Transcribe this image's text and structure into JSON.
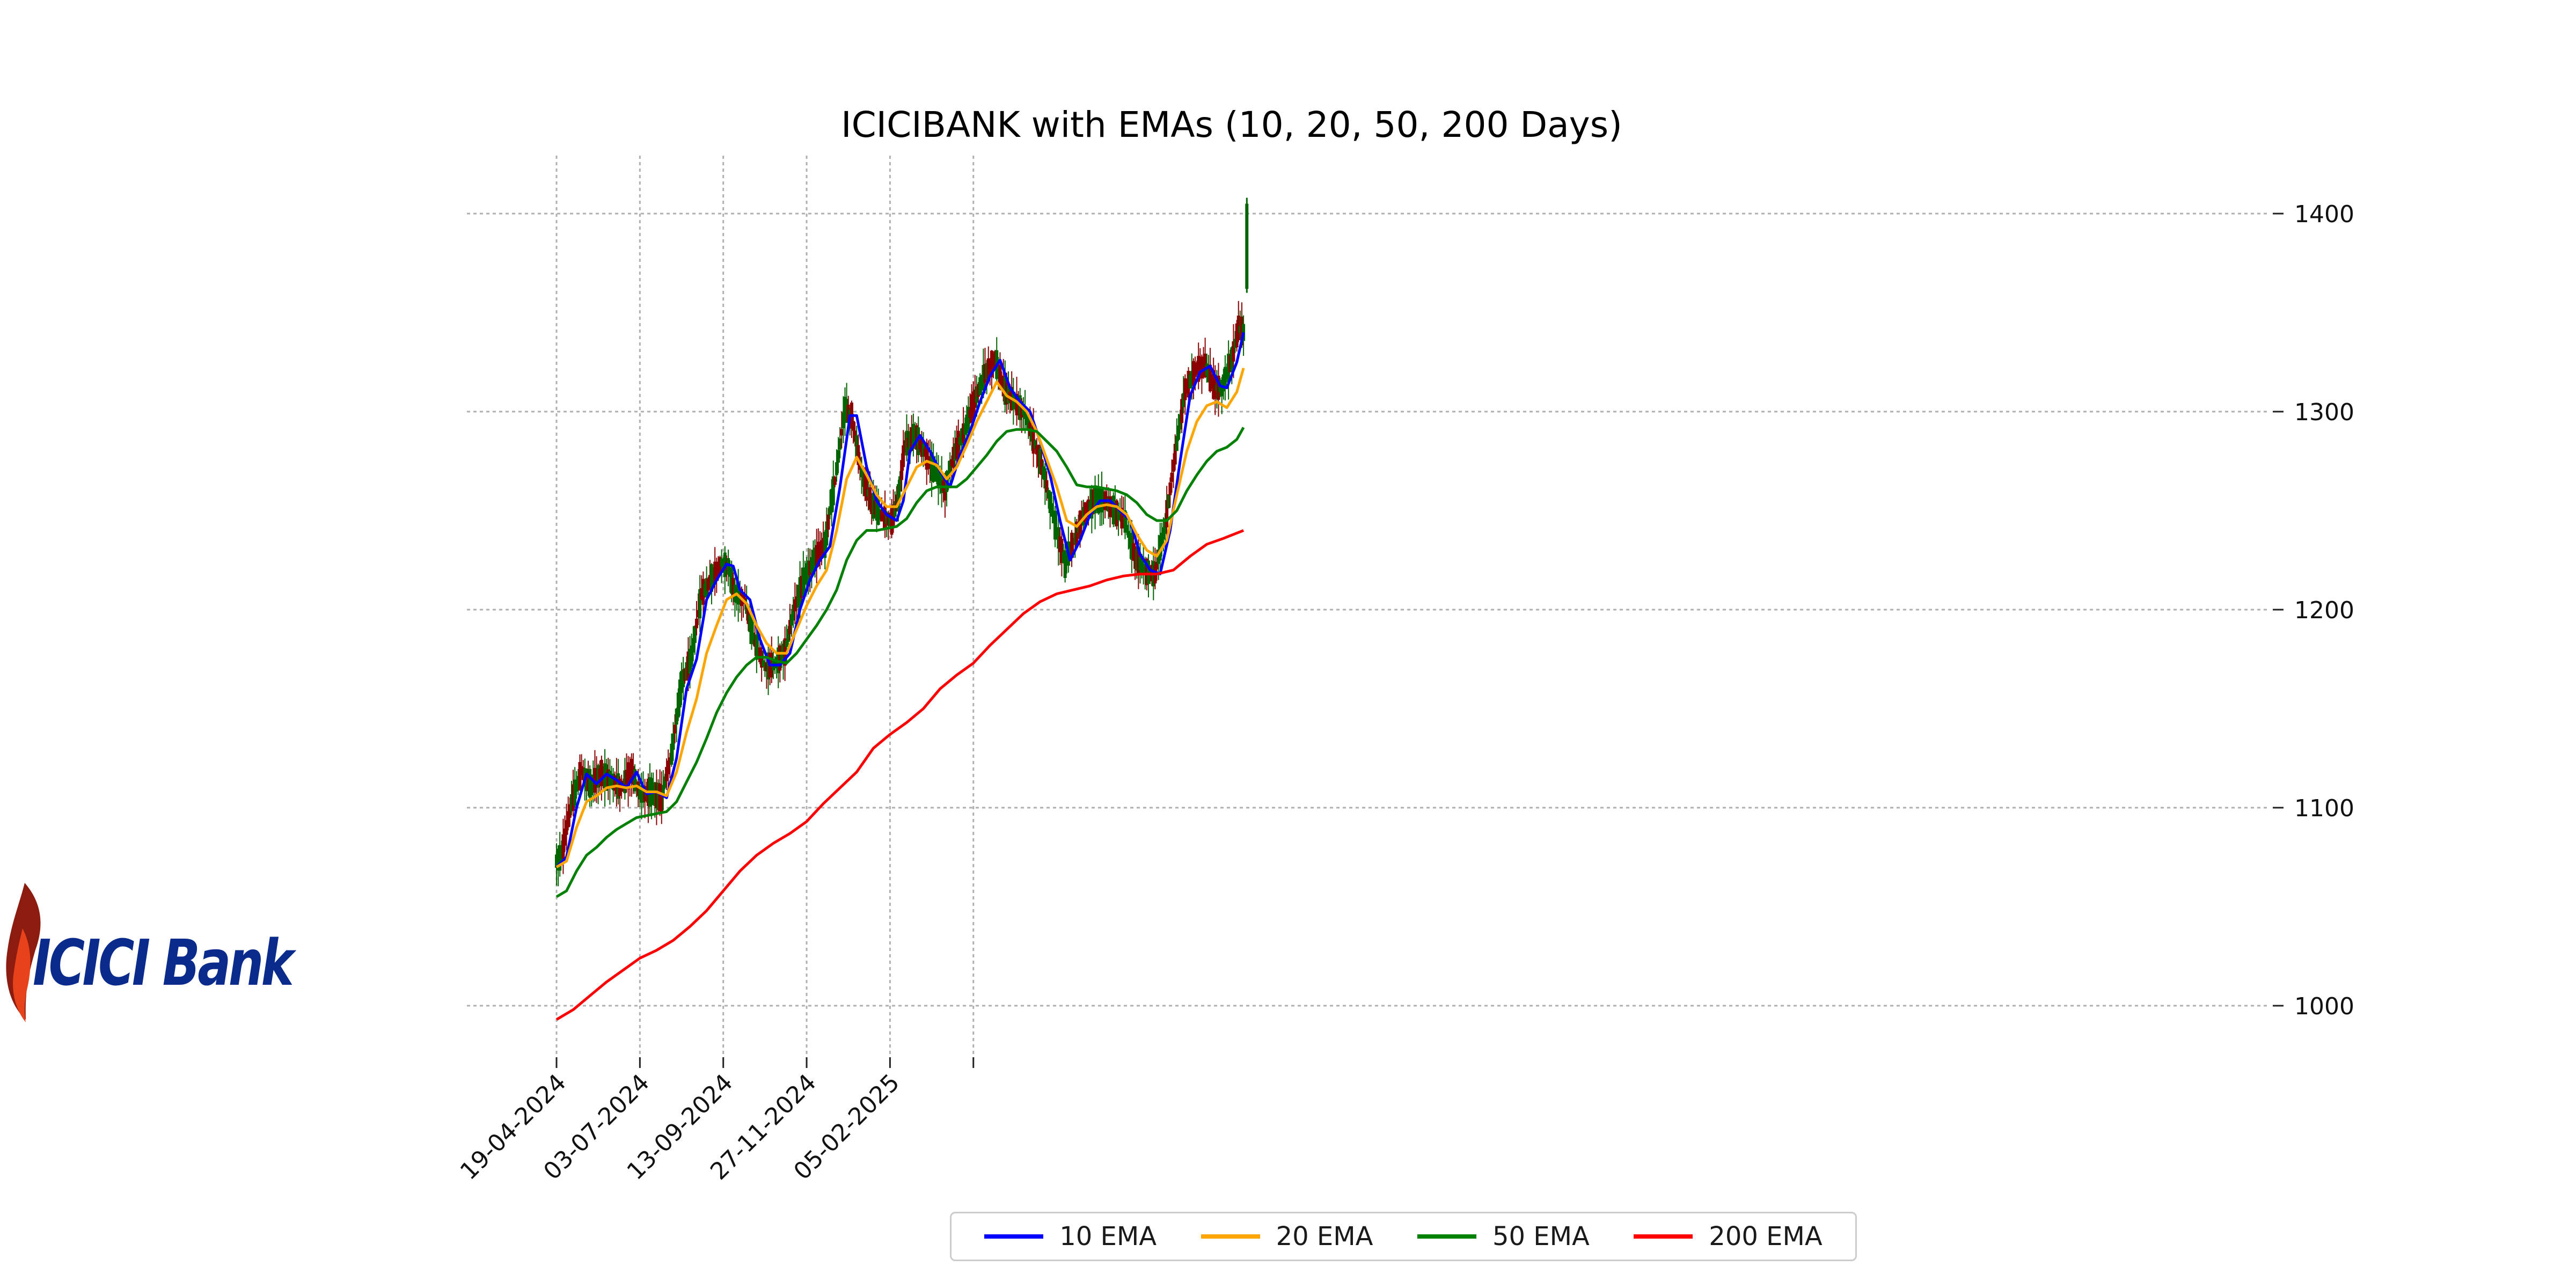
{
  "logo": {
    "text": "ICICI Bank",
    "colors": {
      "text": "#0a2a8c",
      "flame": "#e8421b",
      "dark": "#8c1b10"
    }
  },
  "chart_data": {
    "type": "candlestick",
    "title": "ICICIBANK with EMAs (10, 20, 50, 200 Days)",
    "xlabel": "",
    "ylabel": "",
    "ylim": [
      975,
      1418
    ],
    "y_ticks": [
      1000,
      1100,
      1200,
      1300,
      1400
    ],
    "x_ticks": [
      "19-04-2024",
      "03-07-2024",
      "13-09-2024",
      "27-11-2024",
      "05-02-2025"
    ],
    "grid": true,
    "y_axis_side": "right",
    "legend_position": "bottom-center",
    "candle_colors": {
      "up": "#006400",
      "down": "#8b0000"
    },
    "series": [
      {
        "name": "10 EMA",
        "color": "#0000ff",
        "points": [
          [
            0,
            1070
          ],
          [
            6,
            1075
          ],
          [
            12,
            1100
          ],
          [
            18,
            1117
          ],
          [
            24,
            1112
          ],
          [
            30,
            1117
          ],
          [
            36,
            1114
          ],
          [
            42,
            1110
          ],
          [
            48,
            1118
          ],
          [
            54,
            1107
          ],
          [
            60,
            1108
          ],
          [
            66,
            1105
          ],
          [
            72,
            1125
          ],
          [
            78,
            1160
          ],
          [
            84,
            1175
          ],
          [
            90,
            1205
          ],
          [
            96,
            1215
          ],
          [
            102,
            1223
          ],
          [
            106,
            1222
          ],
          [
            110,
            1210
          ],
          [
            116,
            1205
          ],
          [
            122,
            1185
          ],
          [
            128,
            1172
          ],
          [
            134,
            1172
          ],
          [
            140,
            1178
          ],
          [
            146,
            1200
          ],
          [
            152,
            1215
          ],
          [
            158,
            1225
          ],
          [
            164,
            1232
          ],
          [
            170,
            1262
          ],
          [
            176,
            1298
          ],
          [
            180,
            1298
          ],
          [
            186,
            1272
          ],
          [
            192,
            1255
          ],
          [
            198,
            1248
          ],
          [
            204,
            1245
          ],
          [
            208,
            1255
          ],
          [
            212,
            1280
          ],
          [
            218,
            1288
          ],
          [
            224,
            1280
          ],
          [
            230,
            1270
          ],
          [
            236,
            1262
          ],
          [
            242,
            1278
          ],
          [
            248,
            1290
          ],
          [
            254,
            1305
          ],
          [
            260,
            1318
          ],
          [
            266,
            1326
          ],
          [
            272,
            1312
          ],
          [
            278,
            1305
          ],
          [
            284,
            1300
          ],
          [
            290,
            1285
          ],
          [
            296,
            1268
          ],
          [
            302,
            1245
          ],
          [
            308,
            1225
          ],
          [
            314,
            1235
          ],
          [
            320,
            1248
          ],
          [
            326,
            1255
          ],
          [
            332,
            1255
          ],
          [
            338,
            1250
          ],
          [
            344,
            1245
          ],
          [
            350,
            1228
          ],
          [
            356,
            1220
          ],
          [
            362,
            1218
          ],
          [
            368,
            1240
          ],
          [
            374,
            1275
          ],
          [
            380,
            1308
          ],
          [
            386,
            1320
          ],
          [
            392,
            1323
          ],
          [
            398,
            1313
          ],
          [
            402,
            1312
          ],
          [
            408,
            1325
          ],
          [
            412,
            1340
          ]
        ]
      },
      {
        "name": "20 EMA",
        "color": "#ffa500",
        "points": [
          [
            0,
            1070
          ],
          [
            6,
            1073
          ],
          [
            12,
            1090
          ],
          [
            18,
            1103
          ],
          [
            24,
            1106
          ],
          [
            30,
            1110
          ],
          [
            36,
            1111
          ],
          [
            42,
            1110
          ],
          [
            48,
            1111
          ],
          [
            54,
            1108
          ],
          [
            60,
            1108
          ],
          [
            66,
            1106
          ],
          [
            72,
            1118
          ],
          [
            78,
            1138
          ],
          [
            84,
            1155
          ],
          [
            90,
            1178
          ],
          [
            96,
            1192
          ],
          [
            102,
            1205
          ],
          [
            108,
            1208
          ],
          [
            114,
            1203
          ],
          [
            120,
            1192
          ],
          [
            126,
            1183
          ],
          [
            132,
            1178
          ],
          [
            138,
            1178
          ],
          [
            144,
            1190
          ],
          [
            150,
            1202
          ],
          [
            156,
            1212
          ],
          [
            162,
            1220
          ],
          [
            168,
            1240
          ],
          [
            174,
            1266
          ],
          [
            180,
            1277
          ],
          [
            186,
            1268
          ],
          [
            192,
            1258
          ],
          [
            198,
            1252
          ],
          [
            204,
            1252
          ],
          [
            210,
            1262
          ],
          [
            216,
            1272
          ],
          [
            222,
            1275
          ],
          [
            228,
            1273
          ],
          [
            234,
            1266
          ],
          [
            240,
            1272
          ],
          [
            246,
            1283
          ],
          [
            252,
            1295
          ],
          [
            258,
            1305
          ],
          [
            264,
            1315
          ],
          [
            270,
            1308
          ],
          [
            276,
            1305
          ],
          [
            282,
            1300
          ],
          [
            288,
            1290
          ],
          [
            294,
            1276
          ],
          [
            300,
            1262
          ],
          [
            306,
            1245
          ],
          [
            312,
            1242
          ],
          [
            318,
            1248
          ],
          [
            324,
            1252
          ],
          [
            330,
            1253
          ],
          [
            336,
            1252
          ],
          [
            342,
            1248
          ],
          [
            348,
            1238
          ],
          [
            354,
            1230
          ],
          [
            360,
            1227
          ],
          [
            366,
            1235
          ],
          [
            372,
            1258
          ],
          [
            378,
            1280
          ],
          [
            384,
            1295
          ],
          [
            390,
            1303
          ],
          [
            396,
            1305
          ],
          [
            402,
            1302
          ],
          [
            408,
            1310
          ],
          [
            412,
            1322
          ]
        ]
      },
      {
        "name": "50 EMA",
        "color": "#008000",
        "points": [
          [
            0,
            1055
          ],
          [
            6,
            1058
          ],
          [
            12,
            1068
          ],
          [
            18,
            1076
          ],
          [
            24,
            1080
          ],
          [
            30,
            1085
          ],
          [
            36,
            1089
          ],
          [
            42,
            1092
          ],
          [
            48,
            1095
          ],
          [
            54,
            1096
          ],
          [
            60,
            1097
          ],
          [
            66,
            1098
          ],
          [
            72,
            1103
          ],
          [
            78,
            1113
          ],
          [
            84,
            1123
          ],
          [
            90,
            1135
          ],
          [
            96,
            1148
          ],
          [
            102,
            1158
          ],
          [
            108,
            1166
          ],
          [
            114,
            1172
          ],
          [
            120,
            1176
          ],
          [
            126,
            1176
          ],
          [
            132,
            1174
          ],
          [
            138,
            1173
          ],
          [
            144,
            1178
          ],
          [
            150,
            1185
          ],
          [
            156,
            1192
          ],
          [
            162,
            1200
          ],
          [
            168,
            1210
          ],
          [
            174,
            1225
          ],
          [
            180,
            1235
          ],
          [
            186,
            1240
          ],
          [
            192,
            1240
          ],
          [
            198,
            1241
          ],
          [
            204,
            1242
          ],
          [
            210,
            1246
          ],
          [
            216,
            1254
          ],
          [
            222,
            1260
          ],
          [
            228,
            1262
          ],
          [
            234,
            1262
          ],
          [
            240,
            1262
          ],
          [
            246,
            1266
          ],
          [
            252,
            1272
          ],
          [
            258,
            1278
          ],
          [
            264,
            1285
          ],
          [
            270,
            1290
          ],
          [
            276,
            1291
          ],
          [
            282,
            1291
          ],
          [
            288,
            1290
          ],
          [
            294,
            1285
          ],
          [
            300,
            1280
          ],
          [
            306,
            1272
          ],
          [
            312,
            1263
          ],
          [
            318,
            1262
          ],
          [
            324,
            1262
          ],
          [
            330,
            1261
          ],
          [
            336,
            1260
          ],
          [
            342,
            1258
          ],
          [
            348,
            1254
          ],
          [
            354,
            1248
          ],
          [
            360,
            1245
          ],
          [
            366,
            1245
          ],
          [
            372,
            1250
          ],
          [
            378,
            1260
          ],
          [
            384,
            1268
          ],
          [
            390,
            1275
          ],
          [
            396,
            1280
          ],
          [
            402,
            1282
          ],
          [
            408,
            1286
          ],
          [
            412,
            1292
          ]
        ]
      },
      {
        "name": "200 EMA",
        "color": "#ff0000",
        "points": [
          [
            0,
            993
          ],
          [
            10,
            998
          ],
          [
            20,
            1005
          ],
          [
            30,
            1012
          ],
          [
            40,
            1018
          ],
          [
            50,
            1024
          ],
          [
            60,
            1028
          ],
          [
            70,
            1033
          ],
          [
            80,
            1040
          ],
          [
            90,
            1048
          ],
          [
            100,
            1058
          ],
          [
            110,
            1068
          ],
          [
            120,
            1076
          ],
          [
            130,
            1082
          ],
          [
            140,
            1087
          ],
          [
            150,
            1093
          ],
          [
            160,
            1102
          ],
          [
            170,
            1110
          ],
          [
            180,
            1118
          ],
          [
            190,
            1130
          ],
          [
            200,
            1137
          ],
          [
            210,
            1143
          ],
          [
            220,
            1150
          ],
          [
            230,
            1160
          ],
          [
            240,
            1167
          ],
          [
            250,
            1173
          ],
          [
            260,
            1182
          ],
          [
            270,
            1190
          ],
          [
            280,
            1198
          ],
          [
            290,
            1204
          ],
          [
            300,
            1208
          ],
          [
            310,
            1210
          ],
          [
            320,
            1212
          ],
          [
            330,
            1215
          ],
          [
            340,
            1217
          ],
          [
            350,
            1218
          ],
          [
            360,
            1218
          ],
          [
            370,
            1220
          ],
          [
            380,
            1227
          ],
          [
            390,
            1233
          ],
          [
            400,
            1236
          ],
          [
            412,
            1240
          ]
        ]
      }
    ]
  }
}
